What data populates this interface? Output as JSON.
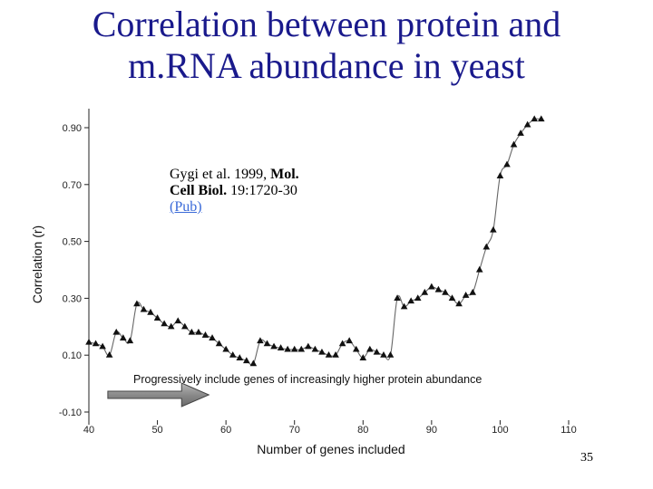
{
  "slide": {
    "title_line1": "Correlation between protein and",
    "title_line2": "m.RNA abundance in yeast",
    "page_number": "35"
  },
  "citation": {
    "line1_a": "Gygi et al. 1999, ",
    "line1_b": "Mol.",
    "line2_a": "Cell Biol.",
    "line2_b": " 19:1720-30",
    "link": "(Pub)"
  },
  "chart_data": {
    "type": "scatter",
    "title": "",
    "xlabel": "Number of genes included",
    "ylabel": "Correlation (r)",
    "xlim": [
      40,
      110
    ],
    "ylim": [
      -0.1,
      0.95
    ],
    "xticks": [
      40,
      50,
      60,
      70,
      80,
      90,
      100,
      110
    ],
    "xtick_labels": [
      "40",
      "50",
      "60",
      "70",
      "80",
      "90",
      "100",
      "110"
    ],
    "yticks": [
      0.9,
      0.7,
      0.5,
      0.3,
      0.1,
      -0.1
    ],
    "ytick_labels": [
      "0.90",
      "0.70",
      "0.50",
      "0.30",
      "0.10",
      "-0.10"
    ],
    "annotation": "Progressively include genes of increasingly higher protein abundance",
    "arrow_range": [
      42.5,
      57.5
    ],
    "colors": {
      "marker": "#111111",
      "line": "#666666",
      "arrow_fill": "#8a8a8a",
      "arrow_stroke": "#444444"
    },
    "series": [
      {
        "name": "correlation",
        "x": [
          40,
          41,
          42,
          43,
          44,
          45,
          46,
          47,
          48,
          49,
          50,
          51,
          52,
          53,
          54,
          55,
          56,
          57,
          58,
          59,
          60,
          61,
          62,
          63,
          64,
          65,
          66,
          67,
          68,
          69,
          70,
          71,
          72,
          73,
          74,
          75,
          76,
          77,
          78,
          79,
          80,
          81,
          82,
          83,
          84,
          85,
          86,
          87,
          88,
          89,
          90,
          91,
          92,
          93,
          94,
          95,
          96,
          97,
          98,
          99,
          100,
          101,
          102,
          103,
          104,
          105,
          106
        ],
        "y": [
          0.145,
          0.14,
          0.13,
          0.1,
          0.18,
          0.16,
          0.15,
          0.28,
          0.26,
          0.25,
          0.23,
          0.21,
          0.2,
          0.22,
          0.2,
          0.18,
          0.18,
          0.17,
          0.16,
          0.14,
          0.12,
          0.1,
          0.09,
          0.08,
          0.07,
          0.15,
          0.14,
          0.13,
          0.125,
          0.12,
          0.12,
          0.12,
          0.13,
          0.12,
          0.11,
          0.1,
          0.1,
          0.14,
          0.15,
          0.12,
          0.09,
          0.12,
          0.11,
          0.1,
          0.1,
          0.3,
          0.27,
          0.29,
          0.3,
          0.32,
          0.34,
          0.33,
          0.32,
          0.3,
          0.28,
          0.31,
          0.32,
          0.4,
          0.48,
          0.54,
          0.73,
          0.77,
          0.84,
          0.88,
          0.91,
          0.93,
          0.93
        ]
      }
    ]
  }
}
